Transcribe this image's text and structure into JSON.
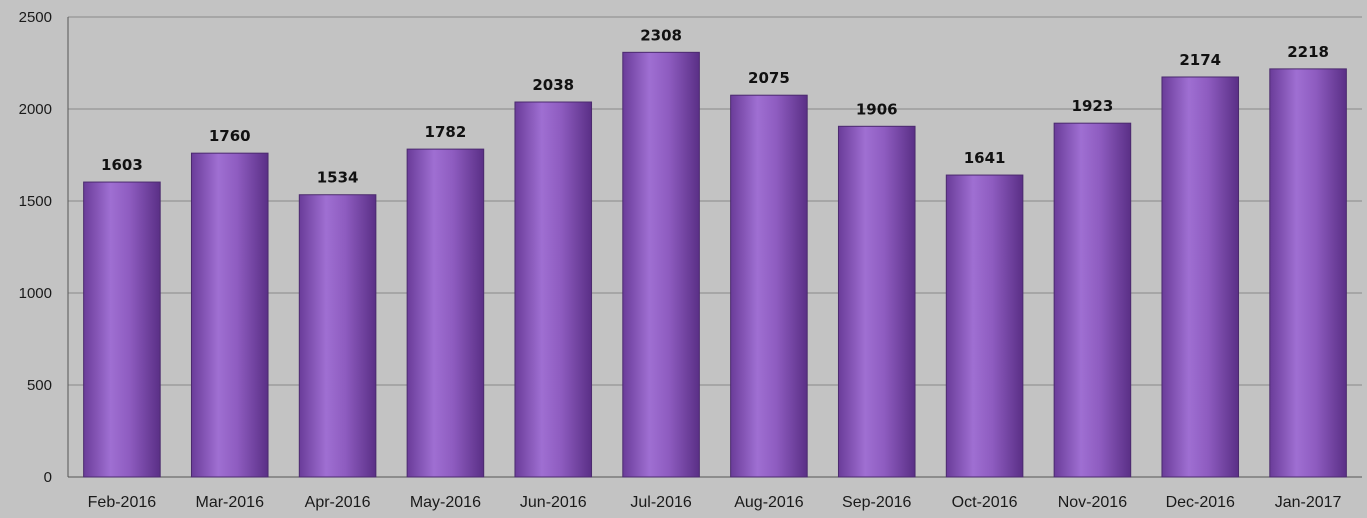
{
  "chart_data": {
    "type": "bar",
    "title": "",
    "xlabel": "",
    "ylabel": "",
    "categories": [
      "Feb-2016",
      "Mar-2016",
      "Apr-2016",
      "May-2016",
      "Jun-2016",
      "Jul-2016",
      "Aug-2016",
      "Sep-2016",
      "Oct-2016",
      "Nov-2016",
      "Dec-2016",
      "Jan-2017"
    ],
    "values": [
      1603,
      1760,
      1534,
      1782,
      2038,
      2308,
      2075,
      1906,
      1641,
      1923,
      2174,
      2218
    ],
    "ylim": [
      0,
      2500
    ],
    "yticks": [
      0,
      500,
      1000,
      1500,
      2000,
      2500
    ],
    "grid": true,
    "legend": "none",
    "bar_color": "#8e5cc0",
    "bar_edge_color": "#4b2a6e",
    "background_color": "#c3c3c3"
  }
}
